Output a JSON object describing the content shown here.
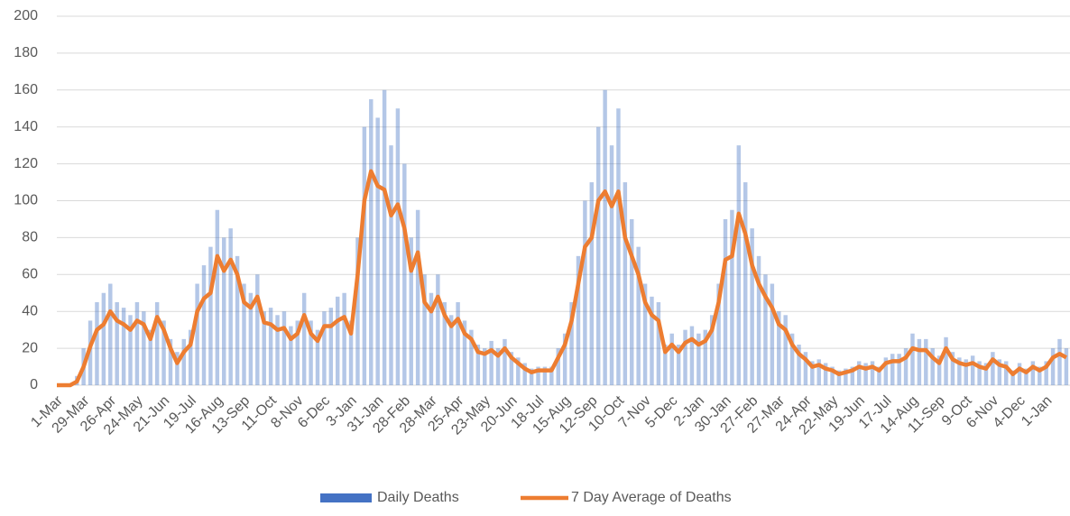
{
  "chart_data": {
    "type": "bar_line",
    "categories": [
      "1-Mar",
      null,
      null,
      null,
      "29-Mar",
      null,
      null,
      null,
      "26-Apr",
      null,
      null,
      null,
      "24-May",
      null,
      null,
      null,
      "21-Jun",
      null,
      null,
      null,
      "19-Jul",
      null,
      null,
      null,
      "16-Aug",
      null,
      null,
      null,
      "13-Sep",
      null,
      null,
      null,
      "11-Oct",
      null,
      null,
      null,
      "8-Nov",
      null,
      null,
      null,
      "6-Dec",
      null,
      null,
      null,
      "3-Jan",
      null,
      null,
      null,
      "31-Jan",
      null,
      null,
      null,
      "28-Feb",
      null,
      null,
      null,
      "28-Mar",
      null,
      null,
      null,
      "25-Apr",
      null,
      null,
      null,
      "23-May",
      null,
      null,
      null,
      "20-Jun",
      null,
      null,
      null,
      "18-Jul",
      null,
      null,
      null,
      "15-Aug",
      null,
      null,
      null,
      "12-Sep",
      null,
      null,
      null,
      "10-Oct",
      null,
      null,
      null,
      "7-Nov",
      null,
      null,
      null,
      "5-Dec",
      null,
      null,
      null,
      "2-Jan",
      null,
      null,
      null,
      "30-Jan",
      null,
      null,
      null,
      "27-Feb",
      null,
      null,
      null,
      "27-Mar",
      null,
      null,
      null,
      "24-Apr",
      null,
      null,
      null,
      "22-May",
      null,
      null,
      null,
      "19-Jun",
      null,
      null,
      null,
      "17-Jul",
      null,
      null,
      null,
      "14-Aug",
      null,
      null,
      null,
      "11-Sep",
      null,
      null,
      null,
      "9-Oct",
      null,
      null,
      null,
      "6-Nov",
      null,
      null,
      null,
      "4-Dec",
      null,
      null,
      null,
      "1-Jan",
      null,
      null,
      null
    ],
    "series": [
      {
        "name": "Daily Deaths",
        "kind": "bar",
        "color": "#4472c4",
        "values": [
          0,
          0,
          1,
          5,
          20,
          35,
          45,
          50,
          55,
          45,
          42,
          38,
          45,
          40,
          30,
          45,
          35,
          25,
          18,
          25,
          30,
          55,
          65,
          75,
          95,
          80,
          85,
          70,
          55,
          50,
          60,
          40,
          42,
          38,
          40,
          32,
          35,
          50,
          35,
          30,
          40,
          42,
          48,
          50,
          35,
          80,
          140,
          155,
          145,
          160,
          130,
          150,
          120,
          80,
          95,
          60,
          50,
          60,
          45,
          38,
          45,
          35,
          30,
          22,
          20,
          24,
          20,
          25,
          18,
          15,
          12,
          9,
          10,
          10,
          10,
          20,
          28,
          45,
          70,
          100,
          110,
          140,
          160,
          130,
          150,
          110,
          90,
          75,
          55,
          48,
          45,
          22,
          28,
          22,
          30,
          32,
          28,
          30,
          38,
          55,
          90,
          95,
          130,
          110,
          85,
          70,
          60,
          55,
          40,
          38,
          28,
          22,
          18,
          13,
          14,
          12,
          10,
          8,
          9,
          10,
          13,
          12,
          13,
          10,
          15,
          17,
          17,
          20,
          28,
          25,
          25,
          20,
          16,
          26,
          18,
          15,
          14,
          16,
          13,
          12,
          18,
          14,
          13,
          8,
          12,
          9,
          13,
          10,
          13,
          20,
          25,
          20
        ]
      },
      {
        "name": "7 Day Average of Deaths",
        "kind": "line",
        "color": "#ed7d31",
        "values": [
          0,
          0,
          0,
          2,
          10,
          21,
          30,
          33,
          40,
          35,
          33,
          30,
          35,
          33,
          25,
          37,
          30,
          20,
          12,
          18,
          22,
          40,
          47,
          50,
          70,
          62,
          68,
          60,
          45,
          42,
          48,
          34,
          33,
          30,
          31,
          25,
          28,
          38,
          28,
          24,
          32,
          32,
          35,
          37,
          28,
          60,
          100,
          116,
          108,
          106,
          92,
          98,
          85,
          62,
          72,
          45,
          40,
          48,
          38,
          32,
          36,
          28,
          25,
          18,
          17,
          19,
          16,
          20,
          15,
          12,
          9,
          7,
          8,
          8,
          8,
          15,
          22,
          35,
          55,
          75,
          80,
          100,
          105,
          97,
          105,
          80,
          70,
          60,
          45,
          38,
          35,
          18,
          22,
          18,
          23,
          25,
          22,
          24,
          30,
          45,
          68,
          70,
          93,
          82,
          65,
          55,
          48,
          42,
          33,
          30,
          22,
          17,
          14,
          10,
          11,
          9,
          8,
          6,
          7,
          8,
          10,
          9,
          10,
          8,
          12,
          13,
          13,
          15,
          20,
          19,
          19,
          15,
          12,
          20,
          14,
          12,
          11,
          12,
          10,
          9,
          14,
          11,
          10,
          6,
          9,
          7,
          10,
          8,
          10,
          15,
          17,
          15
        ]
      }
    ],
    "ylim": [
      0,
      200
    ],
    "yticks": [
      0,
      20,
      40,
      60,
      80,
      100,
      120,
      140,
      160,
      180,
      200
    ],
    "grid": true,
    "legend": "bottom"
  }
}
